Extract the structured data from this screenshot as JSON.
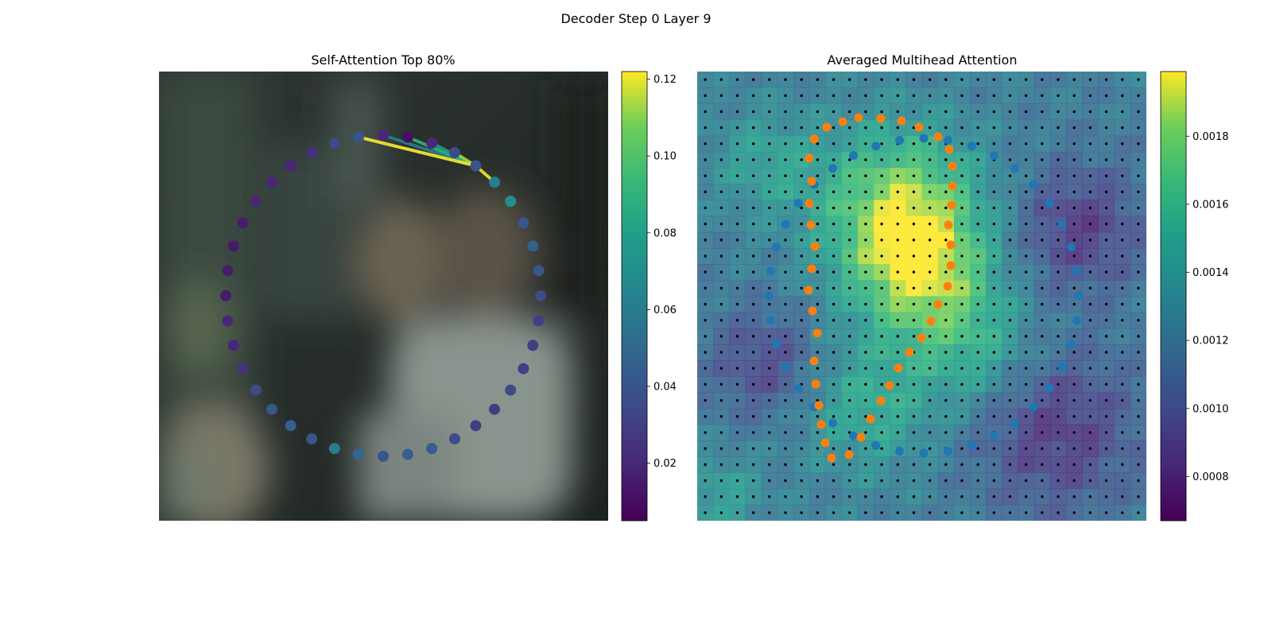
{
  "figure": {
    "suptitle": "Decoder Step 0 Layer 9"
  },
  "chart_data": [
    {
      "type": "scatter",
      "panel": "self-attention",
      "title": "Self-Attention Top 80%",
      "xlabel": "",
      "ylabel": "",
      "grid": false,
      "background": "blurred photo (image content not reproducible)",
      "colormap": "viridis",
      "colorbar": {
        "range": [
          0.005,
          0.122
        ],
        "ticks": [
          0.02,
          0.04,
          0.06,
          0.08,
          0.1,
          0.12
        ],
        "tick_labels": [
          "0.02",
          "0.04",
          "0.06",
          "0.08",
          "0.10",
          "0.12"
        ]
      },
      "points_layout": "ring of 40 contour points",
      "point_values": [
        0.04,
        0.062,
        0.07,
        0.04,
        0.045,
        0.04,
        0.035,
        0.03,
        0.03,
        0.03,
        0.035,
        0.03,
        0.03,
        0.035,
        0.045,
        0.045,
        0.04,
        0.05,
        0.06,
        0.04,
        0.045,
        0.04,
        0.035,
        0.025,
        0.02,
        0.02,
        0.015,
        0.015,
        0.015,
        0.015,
        0.02,
        0.02,
        0.02,
        0.025,
        0.035,
        0.04,
        0.02,
        0.01,
        0.02,
        0.035
      ],
      "links": [
        {
          "from": 0,
          "to": 35,
          "value": 0.048
        },
        {
          "from": 0,
          "to": 36,
          "value": 0.062
        },
        {
          "from": 0,
          "to": 38,
          "value": 0.078
        },
        {
          "from": 0,
          "to": 37,
          "value": 0.09
        },
        {
          "from": 0,
          "to": 39,
          "value": 0.112
        },
        {
          "from": 0,
          "to": 1,
          "value": 0.121
        },
        {
          "from": 0,
          "to": 35,
          "value": 0.122
        }
      ]
    },
    {
      "type": "heatmap",
      "panel": "averaged-multihead",
      "title": "Averaged Multihead Attention",
      "xlabel": "",
      "ylabel": "",
      "grid_size": [
        28,
        28
      ],
      "colormap": "viridis",
      "colorbar": {
        "range": [
          0.00067,
          0.00199
        ],
        "ticks": [
          0.0008,
          0.001,
          0.0012,
          0.0014,
          0.0016,
          0.0018
        ],
        "tick_labels": [
          "0.0008",
          "0.0010",
          "0.0012",
          "0.0014",
          "0.0016",
          "0.0018"
        ]
      },
      "overlays": [
        {
          "name": "initial contour",
          "color": "#1f77b4",
          "shape": "ring"
        },
        {
          "name": "predicted contour",
          "color": "#ff7f0e",
          "shape": "face outline"
        }
      ]
    }
  ]
}
